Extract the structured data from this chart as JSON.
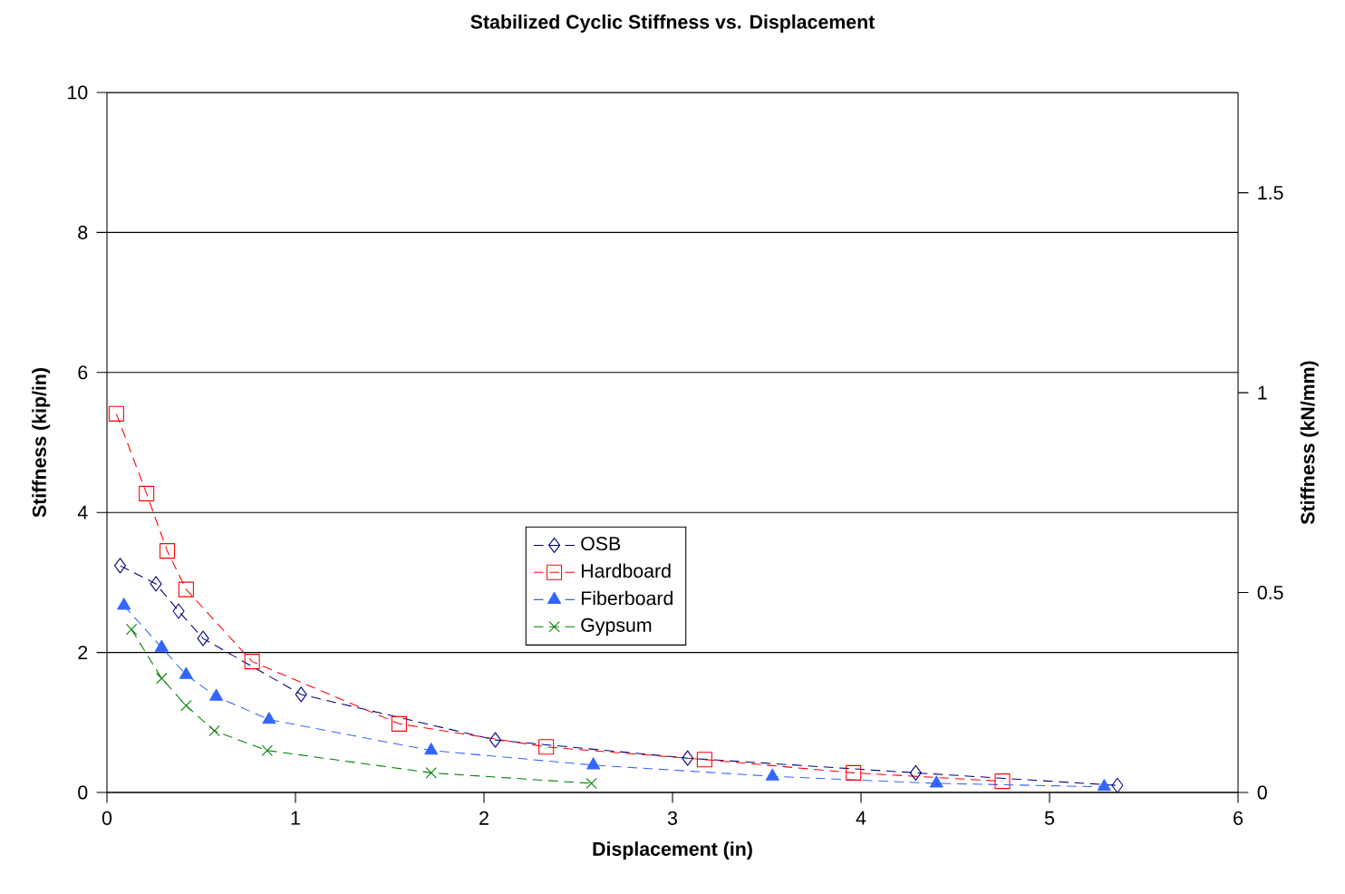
{
  "chart_data": {
    "type": "line",
    "title": "Stabilized Cyclic Stiffness vs. Displacement",
    "xlabel": "Displacement (in)",
    "ylabel": "Stiffness (kip/in)",
    "y2label": "Stiffness (kN/mm)",
    "xlim": [
      0,
      6
    ],
    "xticks": [
      0,
      1,
      2,
      3,
      4,
      5,
      6
    ],
    "ylim": [
      0,
      10
    ],
    "yticks": [
      0,
      2,
      4,
      6,
      8,
      10
    ],
    "y2lim": [
      0,
      1.751
    ],
    "y2ticks": [
      0,
      0.5,
      1,
      1.5
    ],
    "grid": "y",
    "legend": "center",
    "line_style": "dashed",
    "series": [
      {
        "name": "OSB",
        "color": "#000080",
        "marker": "diamond",
        "x": [
          0.07,
          0.26,
          0.38,
          0.51,
          1.03,
          2.06,
          3.08,
          4.29,
          5.36
        ],
        "values": [
          3.24,
          2.98,
          2.59,
          2.2,
          1.4,
          0.75,
          0.49,
          0.28,
          0.1
        ]
      },
      {
        "name": "Hardboard",
        "color": "#ff0000",
        "marker": "square",
        "x": [
          0.05,
          0.21,
          0.32,
          0.42,
          0.77,
          1.55,
          2.33,
          3.17,
          3.96,
          4.75
        ],
        "values": [
          5.41,
          4.27,
          3.45,
          2.9,
          1.87,
          0.98,
          0.65,
          0.47,
          0.28,
          0.16
        ]
      },
      {
        "name": "Fiberboard",
        "color": "#3366ff",
        "marker": "triangle",
        "x": [
          0.09,
          0.29,
          0.42,
          0.58,
          0.86,
          1.72,
          2.58,
          3.53,
          4.4,
          5.29
        ],
        "values": [
          2.67,
          2.07,
          1.68,
          1.37,
          1.04,
          0.6,
          0.39,
          0.23,
          0.13,
          0.08
        ]
      },
      {
        "name": "Gypsum",
        "color": "#008000",
        "marker": "cross",
        "x": [
          0.13,
          0.29,
          0.42,
          0.57,
          0.85,
          1.72,
          2.57
        ],
        "values": [
          2.33,
          1.63,
          1.24,
          0.88,
          0.6,
          0.28,
          0.13
        ]
      }
    ]
  }
}
